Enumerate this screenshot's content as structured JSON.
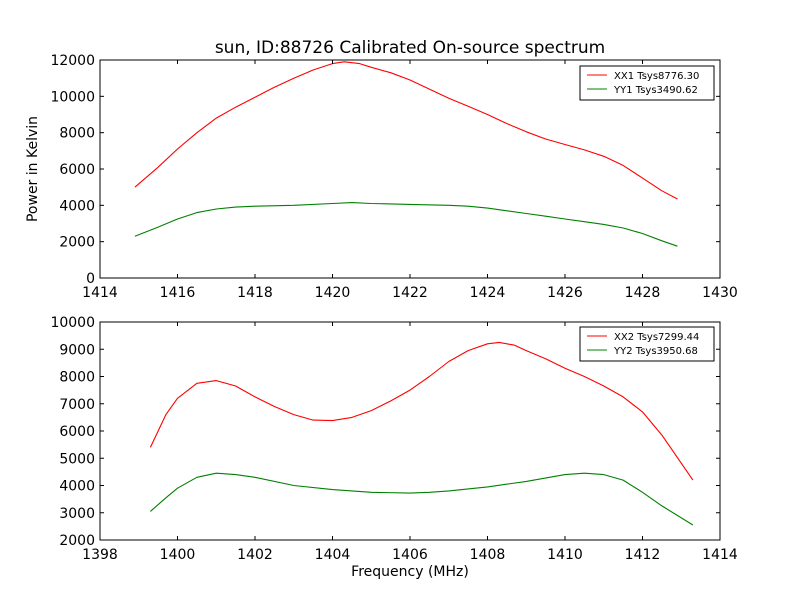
{
  "chart_data": [
    {
      "type": "line",
      "title": "sun, ID:88726 Calibrated On-source spectrum",
      "xlabel": "",
      "ylabel": "Power in Kelvin",
      "xlim": [
        1414,
        1430
      ],
      "ylim": [
        0,
        12000
      ],
      "xticks": [
        1414,
        1416,
        1418,
        1420,
        1422,
        1424,
        1426,
        1428,
        1430
      ],
      "yticks": [
        0,
        2000,
        4000,
        6000,
        8000,
        10000,
        12000
      ],
      "legend_position": "upper right",
      "series": [
        {
          "name": "XX1 Tsys8776.30",
          "color": "#ff0000",
          "x": [
            1414.9,
            1415.5,
            1416.0,
            1416.5,
            1417.0,
            1417.5,
            1418.0,
            1418.5,
            1419.0,
            1419.5,
            1420.0,
            1420.3,
            1420.7,
            1421.0,
            1421.5,
            1422.0,
            1422.5,
            1423.0,
            1423.5,
            1424.0,
            1424.5,
            1425.0,
            1425.5,
            1426.0,
            1426.5,
            1427.0,
            1427.5,
            1428.0,
            1428.5,
            1428.9
          ],
          "y": [
            5000,
            6100,
            7100,
            8000,
            8800,
            9400,
            9950,
            10500,
            11000,
            11450,
            11800,
            11900,
            11800,
            11600,
            11300,
            10900,
            10400,
            9900,
            9450,
            9000,
            8500,
            8050,
            7650,
            7350,
            7050,
            6700,
            6200,
            5500,
            4800,
            4350
          ]
        },
        {
          "name": "YY1 Tsys3490.62",
          "color": "#008000",
          "x": [
            1414.9,
            1415.5,
            1416.0,
            1416.5,
            1417.0,
            1417.5,
            1418.0,
            1419.0,
            1420.0,
            1420.5,
            1421.0,
            1422.0,
            1423.0,
            1423.5,
            1424.0,
            1424.5,
            1425.0,
            1425.5,
            1426.0,
            1426.5,
            1427.0,
            1427.5,
            1428.0,
            1428.5,
            1428.9
          ],
          "y": [
            2300,
            2800,
            3250,
            3600,
            3800,
            3900,
            3950,
            4000,
            4100,
            4150,
            4100,
            4050,
            4000,
            3950,
            3850,
            3700,
            3550,
            3400,
            3250,
            3100,
            2950,
            2750,
            2450,
            2050,
            1750
          ]
        }
      ]
    },
    {
      "type": "line",
      "title": "",
      "xlabel": "Frequency (MHz)",
      "ylabel": "",
      "xlim": [
        1398,
        1414
      ],
      "ylim": [
        2000,
        10000
      ],
      "xticks": [
        1398,
        1400,
        1402,
        1404,
        1406,
        1408,
        1410,
        1412,
        1414
      ],
      "yticks": [
        2000,
        3000,
        4000,
        5000,
        6000,
        7000,
        8000,
        9000,
        10000
      ],
      "legend_position": "upper right",
      "series": [
        {
          "name": "XX2 Tsys7299.44",
          "color": "#ff0000",
          "x": [
            1399.3,
            1399.7,
            1400.0,
            1400.5,
            1401.0,
            1401.5,
            1402.0,
            1402.5,
            1403.0,
            1403.5,
            1404.0,
            1404.5,
            1405.0,
            1405.5,
            1406.0,
            1406.5,
            1407.0,
            1407.5,
            1408.0,
            1408.3,
            1408.7,
            1409.0,
            1409.5,
            1410.0,
            1410.5,
            1411.0,
            1411.5,
            1412.0,
            1412.5,
            1413.3
          ],
          "y": [
            5400,
            6600,
            7200,
            7750,
            7850,
            7650,
            7250,
            6900,
            6600,
            6400,
            6380,
            6500,
            6750,
            7100,
            7500,
            8000,
            8550,
            8950,
            9200,
            9250,
            9150,
            8950,
            8650,
            8300,
            8000,
            7650,
            7250,
            6700,
            5850,
            4200
          ]
        },
        {
          "name": "YY2 Tsys3950.68",
          "color": "#008000",
          "x": [
            1399.3,
            1399.7,
            1400.0,
            1400.5,
            1401.0,
            1401.5,
            1402.0,
            1403.0,
            1404.0,
            1405.0,
            1406.0,
            1406.5,
            1407.0,
            1408.0,
            1409.0,
            1410.0,
            1410.5,
            1411.0,
            1411.5,
            1412.0,
            1412.5,
            1413.3
          ],
          "y": [
            3050,
            3550,
            3900,
            4300,
            4450,
            4400,
            4300,
            4000,
            3850,
            3750,
            3720,
            3750,
            3800,
            3950,
            4150,
            4400,
            4450,
            4400,
            4200,
            3750,
            3250,
            2550
          ]
        }
      ]
    }
  ]
}
